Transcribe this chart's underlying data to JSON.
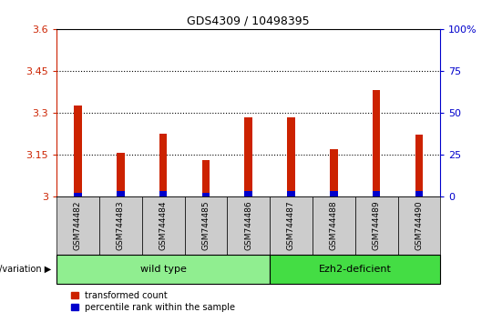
{
  "title": "GDS4309 / 10498395",
  "categories": [
    "GSM744482",
    "GSM744483",
    "GSM744484",
    "GSM744485",
    "GSM744486",
    "GSM744487",
    "GSM744488",
    "GSM744489",
    "GSM744490"
  ],
  "transformed_counts": [
    3.325,
    3.155,
    3.225,
    3.13,
    3.285,
    3.285,
    3.17,
    3.38,
    3.22
  ],
  "percentile_ranks": [
    2,
    3,
    3,
    2,
    3,
    3,
    3,
    3,
    3
  ],
  "ylim_left": [
    3.0,
    3.6
  ],
  "ylim_right": [
    0,
    100
  ],
  "yticks_left": [
    3.0,
    3.15,
    3.3,
    3.45,
    3.6
  ],
  "yticks_right": [
    0,
    25,
    50,
    75,
    100
  ],
  "ytick_labels_left": [
    "3",
    "3.15",
    "3.3",
    "3.45",
    "3.6"
  ],
  "ytick_labels_right": [
    "0",
    "25",
    "50",
    "75",
    "100%"
  ],
  "grid_lines": [
    3.15,
    3.3,
    3.45
  ],
  "bar_color_red": "#cc2200",
  "bar_color_blue": "#0000cc",
  "bar_width": 0.18,
  "xlim": [
    -0.5,
    8.5
  ],
  "wild_type_range": [
    0,
    4
  ],
  "ezh2_range": [
    5,
    8
  ],
  "wild_type_color": "#90ee90",
  "ezh2_color": "#44dd44",
  "grey_box_color": "#cccccc",
  "legend_red_label": "transformed count",
  "legend_blue_label": "percentile rank within the sample",
  "bottom_label": "genotype/variation",
  "title_color": "#000000",
  "axis_color_left": "#cc2200",
  "axis_color_right": "#0000cc"
}
